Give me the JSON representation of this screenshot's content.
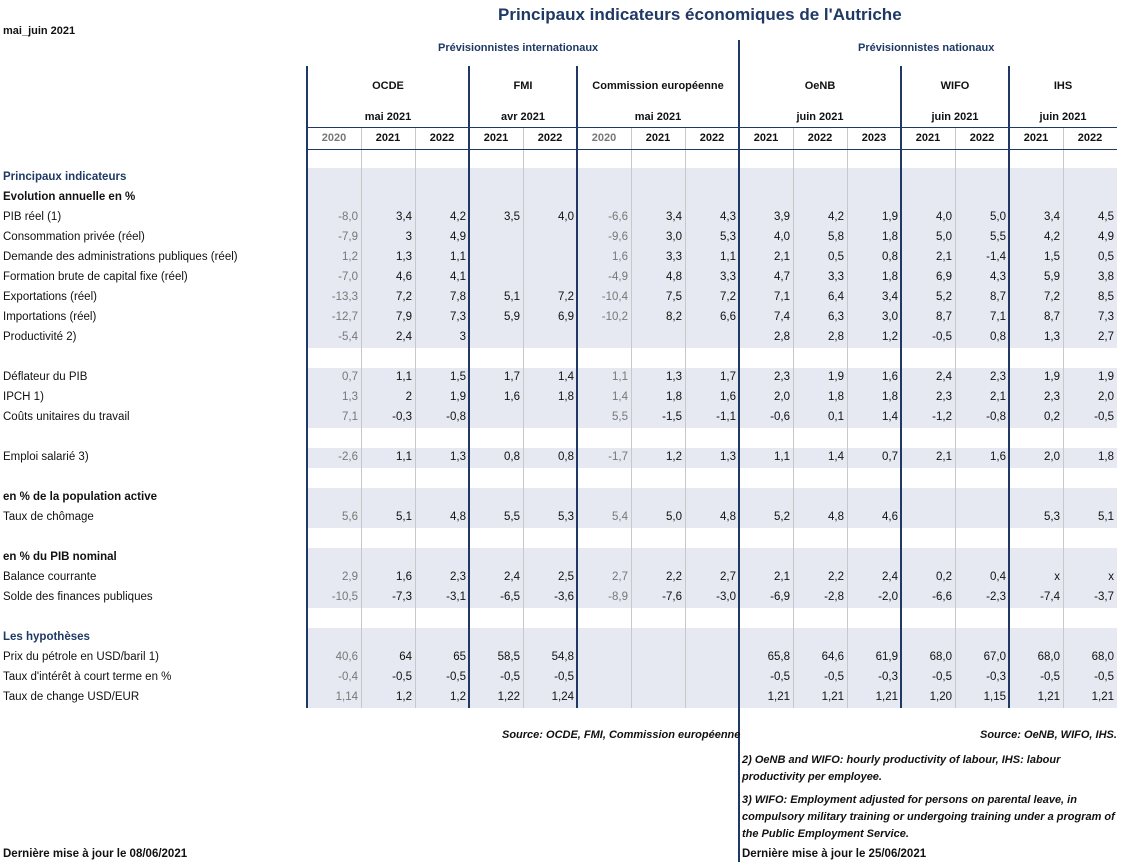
{
  "title": "Principaux indicateurs économiques de l'Autriche",
  "date_label": "mai_juin 2021",
  "groups": {
    "intl": "Prévisionnistes internationaux",
    "nat": "Prévisionnistes nationaux"
  },
  "institutions": [
    {
      "name": "OCDE",
      "date": "mai 2021"
    },
    {
      "name": "FMI",
      "date": "avr 2021"
    },
    {
      "name": "Commission européenne",
      "date": "mai 2021"
    },
    {
      "name": "OeNB",
      "date": "juin 2021"
    },
    {
      "name": "WIFO",
      "date": "juin 2021"
    },
    {
      "name": "IHS",
      "date": "juin 2021"
    }
  ],
  "years": [
    "2020",
    "2021",
    "2022",
    "2021",
    "2022",
    "2020",
    "2021",
    "2022",
    "2021",
    "2022",
    "2023",
    "2021",
    "2022",
    "2021",
    "2022"
  ],
  "rows": [
    {
      "label": "Principaux indicateurs",
      "style": "blue",
      "values": []
    },
    {
      "label": "Evolution annuelle en  %",
      "style": "bold",
      "values": []
    },
    {
      "label": "PIB réel (1)",
      "values": [
        "-8,0",
        "3,4",
        "4,2",
        "3,5",
        "4,0",
        "-6,6",
        "3,4",
        "4,3",
        "3,9",
        "4,2",
        "1,9",
        "4,0",
        "5,0",
        "3,4",
        "4,5"
      ]
    },
    {
      "label": "Consommation privée (réel)",
      "values": [
        "-7,9",
        "3",
        "4,9",
        "",
        "",
        "-9,6",
        "3,0",
        "5,3",
        "4,0",
        "5,8",
        "1,8",
        "5,0",
        "5,5",
        "4,2",
        "4,9"
      ]
    },
    {
      "label": "Demande des administrations publiques (réel)",
      "values": [
        "1,2",
        "1,3",
        "1,1",
        "",
        "",
        "1,6",
        "3,3",
        "1,1",
        "2,1",
        "0,5",
        "0,8",
        "2,1",
        "-1,4",
        "1,5",
        "0,5"
      ]
    },
    {
      "label": "Formation brute de capital fixe (réel)",
      "values": [
        "-7,0",
        "4,6",
        "4,1",
        "",
        "",
        "-4,9",
        "4,8",
        "3,3",
        "4,7",
        "3,3",
        "1,8",
        "6,9",
        "4,3",
        "5,9",
        "3,8"
      ]
    },
    {
      "label": "Exportations (réel)",
      "values": [
        "-13,3",
        "7,2",
        "7,8",
        "5,1",
        "7,2",
        "-10,4",
        "7,5",
        "7,2",
        "7,1",
        "6,4",
        "3,4",
        "5,2",
        "8,7",
        "7,2",
        "8,5"
      ]
    },
    {
      "label": "Importations (réel)",
      "values": [
        "-12,7",
        "7,9",
        "7,3",
        "5,9",
        "6,9",
        "-10,2",
        "8,2",
        "6,6",
        "7,4",
        "6,3",
        "3,0",
        "8,7",
        "7,1",
        "8,7",
        "7,3"
      ]
    },
    {
      "label": "Productivité 2)",
      "values": [
        "-5,4",
        "2,4",
        "3",
        "",
        "",
        "",
        "",
        "",
        "2,8",
        "2,8",
        "1,2",
        "-0,5",
        "0,8",
        "1,3",
        "2,7"
      ]
    },
    {
      "label": "",
      "values": []
    },
    {
      "label": "Déflateur du PIB",
      "values": [
        "0,7",
        "1,1",
        "1,5",
        "1,7",
        "1,4",
        "1,1",
        "1,3",
        "1,7",
        "2,3",
        "1,9",
        "1,6",
        "2,4",
        "2,3",
        "1,9",
        "1,9"
      ]
    },
    {
      "label": "IPCH 1)",
      "values": [
        "1,3",
        "2",
        "1,9",
        "1,6",
        "1,8",
        "1,4",
        "1,8",
        "1,6",
        "2,0",
        "1,8",
        "1,8",
        "2,3",
        "2,1",
        "2,3",
        "2,0"
      ]
    },
    {
      "label": "Coûts unitaires du travail",
      "values": [
        "7,1",
        "-0,3",
        "-0,8",
        "",
        "",
        "5,5",
        "-1,5",
        "-1,1",
        "-0,6",
        "0,1",
        "1,4",
        "-1,2",
        "-0,8",
        "0,2",
        "-0,5"
      ]
    },
    {
      "label": "",
      "values": []
    },
    {
      "label": "Emploi salarié 3)",
      "values": [
        "-2,6",
        "1,1",
        "1,3",
        "0,8",
        "0,8",
        "-1,7",
        "1,2",
        "1,3",
        "1,1",
        "1,4",
        "0,7",
        "2,1",
        "1,6",
        "2,0",
        "1,8"
      ]
    },
    {
      "label": "",
      "values": []
    },
    {
      "label": "en % de la population active",
      "style": "bold",
      "values": []
    },
    {
      "label": "Taux de chômage",
      "values": [
        "5,6",
        "5,1",
        "4,8",
        "5,5",
        "5,3",
        "5,4",
        "5,0",
        "4,8",
        "5,2",
        "4,8",
        "4,6",
        "",
        "",
        "5,3",
        "5,1"
      ]
    },
    {
      "label": "",
      "values": []
    },
    {
      "label": "en % du PIB nominal",
      "style": "bold",
      "values": []
    },
    {
      "label": "Balance courrante",
      "values": [
        "2,9",
        "1,6",
        "2,3",
        "2,4",
        "2,5",
        "2,7",
        "2,2",
        "2,7",
        "2,1",
        "2,2",
        "2,4",
        "0,2",
        "0,4",
        "x",
        "x"
      ]
    },
    {
      "label": "Solde des finances publiques",
      "values": [
        "-10,5",
        "-7,3",
        "-3,1",
        "-6,5",
        "-3,6",
        "-8,9",
        "-7,6",
        "-3,0",
        "-6,9",
        "-2,8",
        "-2,0",
        "-6,6",
        "-2,3",
        "-7,4",
        "-3,7"
      ]
    },
    {
      "label": "",
      "values": []
    },
    {
      "label": "Les hypothèses",
      "style": "blue",
      "values": []
    },
    {
      "label": "Prix du pétrole en USD/baril 1)",
      "values": [
        "40,6",
        "64",
        "65",
        "58,5",
        "54,8",
        "",
        "",
        "",
        "65,8",
        "64,6",
        "61,9",
        "68,0",
        "67,0",
        "68,0",
        "68,0"
      ]
    },
    {
      "label": "Taux d'intérêt à court terme en %",
      "values": [
        "-0,4",
        "-0,5",
        "-0,5",
        "-0,5",
        "-0,5",
        "",
        "",
        "",
        "-0,5",
        "-0,5",
        "-0,3",
        "-0,5",
        "-0,3",
        "-0,5",
        "-0,5"
      ]
    },
    {
      "label": "Taux de change USD/EUR",
      "values": [
        "1,14",
        "1,2",
        "1,2",
        "1,22",
        "1,24",
        "",
        "",
        "",
        "1,21",
        "1,21",
        "1,21",
        "1,20",
        "1,15",
        "1,21",
        "1,21"
      ]
    }
  ],
  "sources": {
    "intl": "Source: OCDE, FMI, Commission européenne",
    "nat": "Source: OeNB, WIFO, IHS."
  },
  "notes": {
    "n2": "2)  OeNB and WIFO: hourly productivity of labour, IHS: labour productivity per employee.",
    "n3": "3)  WIFO: Employment adjusted for persons on parental leave, in compulsory military training or undergoing training under a program of the Public Employment Service."
  },
  "footer": {
    "left": "Dernière mise à jour le 08/06/2021",
    "right": "Dernière mise à jour le  25/06/2021"
  }
}
